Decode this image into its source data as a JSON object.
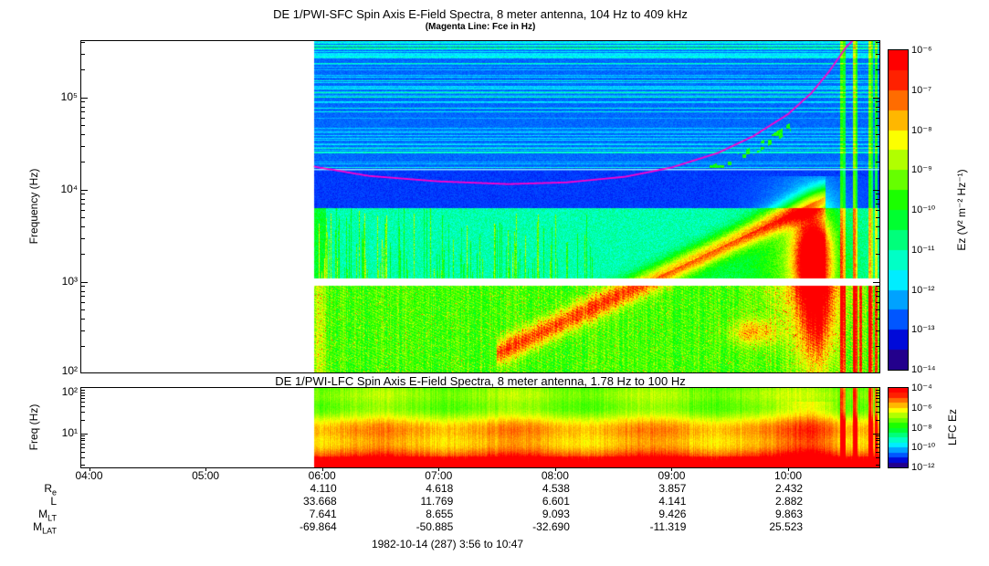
{
  "chart_data": [
    {
      "type": "heatmap",
      "title": "DE 1/PWI-SFC  Spin Axis E-Field Spectra, 8 meter antenna, 104 Hz to 409 kHz",
      "subtitle": "(Magenta Line: Fce in Hz)",
      "x_axis": {
        "unit": "UT",
        "start_hour": 3.9333,
        "end_hour": 10.7833,
        "ticks": [
          "04:00",
          "05:00",
          "06:00",
          "07:00",
          "08:00",
          "09:00",
          "10:00"
        ]
      },
      "y_axis": {
        "label": "Frequency (Hz)",
        "scale": "log",
        "min_hz": 104,
        "max_hz": 409000,
        "tick_labels": [
          "10⁵",
          "10⁴",
          "10³",
          "10²"
        ],
        "tick_values_hz": [
          100000,
          10000,
          1000,
          100
        ]
      },
      "colorbar": {
        "label": "Ez (V² m⁻² Hz⁻¹)",
        "scale": "log",
        "tick_labels": [
          "10⁻⁶",
          "10⁻⁷",
          "10⁻⁸",
          "10⁻⁹",
          "10⁻¹⁰",
          "10⁻¹¹",
          "10⁻¹²",
          "10⁻¹³",
          "10⁻¹⁴"
        ]
      },
      "data_start_hour": 5.93,
      "cyan_line_hz": 16500,
      "white_gap_hz": [
        900,
        1080
      ],
      "fce_line_hz": [
        [
          5.93,
          17800
        ],
        [
          6.4,
          14100
        ],
        [
          7.0,
          12300
        ],
        [
          7.6,
          11500
        ],
        [
          8.1,
          12000
        ],
        [
          8.6,
          13800
        ],
        [
          9.0,
          17400
        ],
        [
          9.4,
          25100
        ],
        [
          9.7,
          38000
        ],
        [
          10.0,
          66000
        ],
        [
          10.2,
          112000
        ],
        [
          10.35,
          190000
        ],
        [
          10.5,
          355000
        ],
        [
          10.56,
          420000
        ]
      ],
      "features": [
        "no data (white region) before about 05:56 UT",
        "banded blue background with horizontal interference lines above about 20 kHz",
        "narrow cyan horizontal line near 16-17 kHz across the data interval",
        "magenta Fce line dips from about 18 kHz to 11 kHz near 07:30 then rises steeply past 400 kHz near 10:30",
        "patchy cyan/green emissions 1-7 kHz with vertical bursts 06:00-08:15",
        "broadband green/yellow turbulence below 1 kHz",
        "rising diagonal emission from about 200 Hz at 07:40 to about 8 kHz at 10:15",
        "intense red emission region near 10:10-10:20 between about 0.3-5 kHz",
        "full-height vertical burst lines 10:27-10:45",
        "white horizontal data gap near 1 kHz",
        "scattered green dots just below the Fce line 09:15-10:00"
      ]
    },
    {
      "type": "heatmap",
      "title": "DE 1/PWI-LFC  Spin Axis E-Field Spectra, 8 meter antenna, 1.78 Hz to 100 Hz",
      "x_axis": {
        "unit": "UT",
        "start_hour": 3.9333,
        "end_hour": 10.7833,
        "ticks": [
          "04:00",
          "05:00",
          "06:00",
          "07:00",
          "08:00",
          "09:00",
          "10:00"
        ]
      },
      "y_axis": {
        "label": "Freq (Hz)",
        "scale": "log",
        "min_hz": 1.78,
        "max_hz": 100,
        "tick_labels": [
          "10²",
          "10¹"
        ],
        "tick_values_hz": [
          100,
          10
        ]
      },
      "colorbar": {
        "label": "LFC Ez",
        "scale": "log",
        "tick_labels": [
          "10⁻⁴",
          "10⁻⁶",
          "10⁻⁸",
          "10⁻¹⁰",
          "10⁻¹²"
        ]
      },
      "data_start_hour": 5.93,
      "features": [
        "no data (white region) before about 05:56 UT",
        "horizontally banded broadband ELF emission, intensity increasing toward lower frequency",
        "red most-intense levels below about 5 Hz",
        "vertical burst lines near 10:27-10:45"
      ]
    }
  ],
  "ephemeris": {
    "value_hours": [
      6,
      7,
      8,
      9,
      10
    ],
    "rows": [
      {
        "label_base": "R",
        "label_sub": "e",
        "values": [
          "4.110",
          "4.618",
          "4.538",
          "3.857",
          "2.432"
        ]
      },
      {
        "label_base": "L",
        "label_sub": "",
        "values": [
          "33.668",
          "11.769",
          "6.601",
          "4.141",
          "2.882"
        ]
      },
      {
        "label_base": "M",
        "label_sub": "LT",
        "values": [
          "7.641",
          "8.655",
          "9.093",
          "9.426",
          "9.863"
        ]
      },
      {
        "label_base": "M",
        "label_sub": "LAT",
        "values": [
          "-69.864",
          "-50.885",
          "-32.690",
          "-11.319",
          "25.523"
        ]
      }
    ]
  },
  "footer": {
    "text": "1982-10-14 (287) 3:56 to 10:47"
  }
}
